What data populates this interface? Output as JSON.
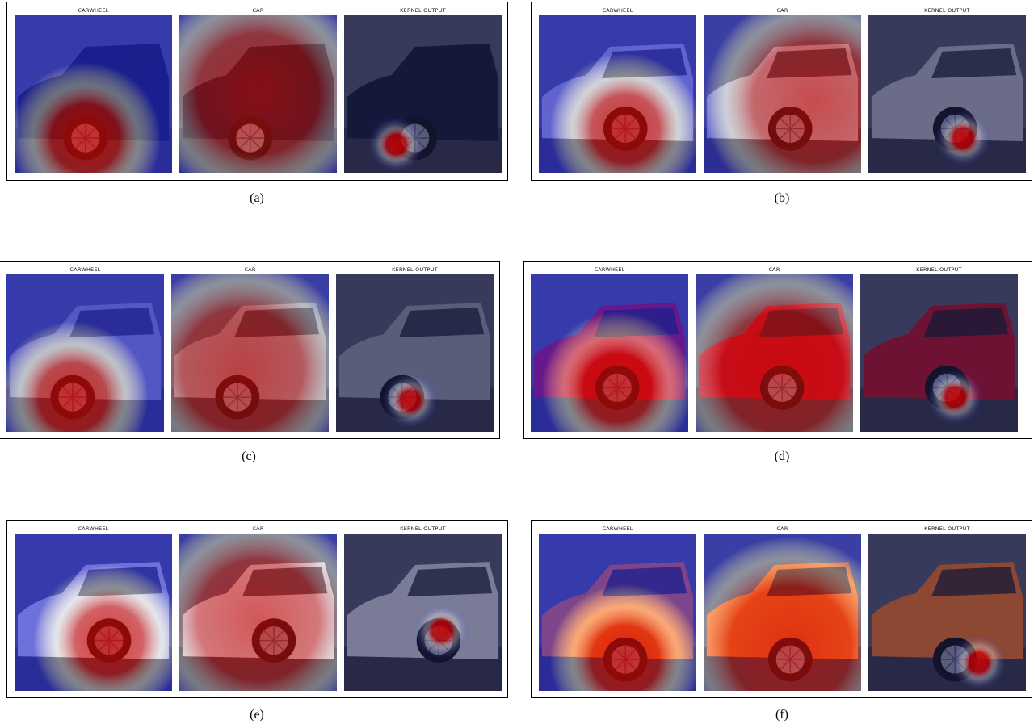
{
  "figure": {
    "subplot_titles": [
      "CARWHEEL",
      "CAR",
      "KERNEL OUTPUT"
    ],
    "panels": [
      {
        "caption": "(a)",
        "scene": "dark-suv"
      },
      {
        "caption": "(b)",
        "scene": "silver-suv"
      },
      {
        "caption": "(c)",
        "scene": "vintage-coupe"
      },
      {
        "caption": "(d)",
        "scene": "red-convertible"
      },
      {
        "caption": "(e)",
        "scene": "silver-sports-car"
      },
      {
        "caption": "(f)",
        "scene": "orange-supercar"
      }
    ]
  },
  "colors": {
    "heat_red": "#d00000",
    "heat_blue": "#1a1ad8",
    "heat_white": "#ffffff",
    "frame": "#000000"
  }
}
